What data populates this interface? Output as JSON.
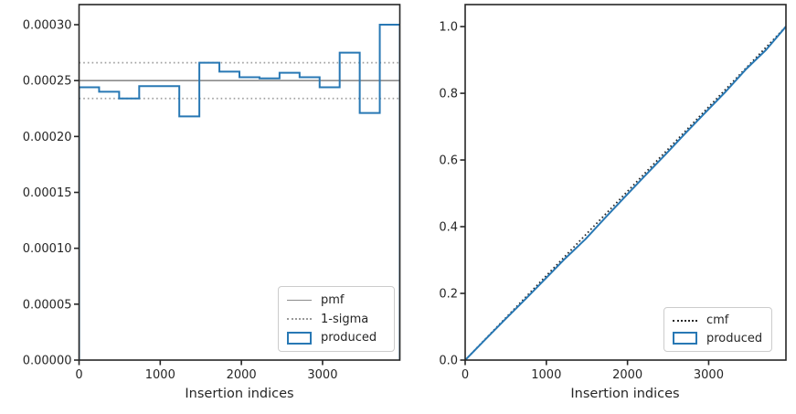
{
  "colors": {
    "produced_blue": "#2878b4",
    "pmf_gray": "#8c8c8c",
    "sigma_gray": "#a0a0a0",
    "cmf_black": "#262626",
    "axis": "#262626",
    "text": "#262626",
    "legend_border": "#cccccc",
    "background": "#ffffff"
  },
  "chart_data": [
    {
      "type": "step-histogram",
      "name": "pmf-panel",
      "title": "",
      "xlabel": "Insertion indices",
      "ylabel": "",
      "xlim": [
        0,
        3952
      ],
      "ylim": [
        0,
        0.000318
      ],
      "xticks": [
        0,
        1000,
        2000,
        3000
      ],
      "xtick_labels": [
        "0",
        "1000",
        "2000",
        "3000"
      ],
      "yticks": [
        0.0,
        5e-05,
        0.0001,
        0.00015,
        0.0002,
        0.00025,
        0.0003
      ],
      "ytick_labels": [
        "0.00000",
        "0.00005",
        "0.00010",
        "0.00015",
        "0.00020",
        "0.00025",
        "0.00030"
      ],
      "grid": false,
      "pmf_value": 0.00025,
      "sigma_upper": 0.000266,
      "sigma_lower": 0.000234,
      "bin_edges": [
        0,
        247,
        494,
        741,
        988,
        1235,
        1482,
        1729,
        1976,
        2223,
        2470,
        2717,
        2964,
        3211,
        3458,
        3705,
        3952
      ],
      "bin_values": [
        0.000244,
        0.00024,
        0.000234,
        0.000245,
        0.000245,
        0.000218,
        0.000266,
        0.000258,
        0.000253,
        0.000252,
        0.000257,
        0.000253,
        0.000244,
        0.000275,
        0.000221,
        0.0003
      ],
      "legend_position": "lower right",
      "legend": [
        {
          "label": "pmf",
          "swatch": "line-solid-gray"
        },
        {
          "label": "1-sigma",
          "swatch": "line-dotted-gray"
        },
        {
          "label": "produced",
          "swatch": "rect-blue"
        }
      ]
    },
    {
      "type": "line",
      "name": "cmf-panel",
      "title": "",
      "xlabel": "Insertion indices",
      "ylabel": "",
      "xlim": [
        0,
        3952
      ],
      "ylim": [
        0,
        1.066
      ],
      "xticks": [
        0,
        1000,
        2000,
        3000
      ],
      "xtick_labels": [
        "0",
        "1000",
        "2000",
        "3000"
      ],
      "yticks": [
        0.0,
        0.2,
        0.4,
        0.6,
        0.8,
        1.0
      ],
      "ytick_labels": [
        "0.0",
        "0.2",
        "0.4",
        "0.6",
        "0.8",
        "1.0"
      ],
      "grid": false,
      "cmf_line": {
        "x": [
          0,
          3952
        ],
        "y": [
          0,
          1
        ]
      },
      "produced_x": [
        0,
        247,
        494,
        741,
        988,
        1235,
        1482,
        1729,
        1976,
        2223,
        2470,
        2717,
        2964,
        3211,
        3458,
        3705,
        3952
      ],
      "produced_y": [
        0,
        0.0615,
        0.1224,
        0.1823,
        0.2438,
        0.3053,
        0.3626,
        0.4277,
        0.4915,
        0.5547,
        0.6172,
        0.681,
        0.7435,
        0.8053,
        0.8717,
        0.9297,
        1.0
      ],
      "legend_position": "lower right",
      "legend": [
        {
          "label": "cmf",
          "swatch": "line-dotted-black"
        },
        {
          "label": "produced",
          "swatch": "rect-blue"
        }
      ]
    }
  ]
}
